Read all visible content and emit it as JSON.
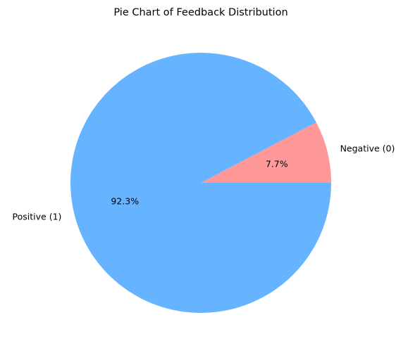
{
  "chart_data": {
    "type": "pie",
    "title": "Pie Chart of Feedback Distribution",
    "slices": [
      {
        "label": "Negative (0)",
        "value": 7.7,
        "pct_label": "7.7%",
        "color": "#ff9999"
      },
      {
        "label": "Positive (1)",
        "value": 92.3,
        "pct_label": "92.3%",
        "color": "#66b3ff"
      }
    ],
    "start_angle_deg": 0,
    "direction": "counterclockwise",
    "legend": "none"
  }
}
